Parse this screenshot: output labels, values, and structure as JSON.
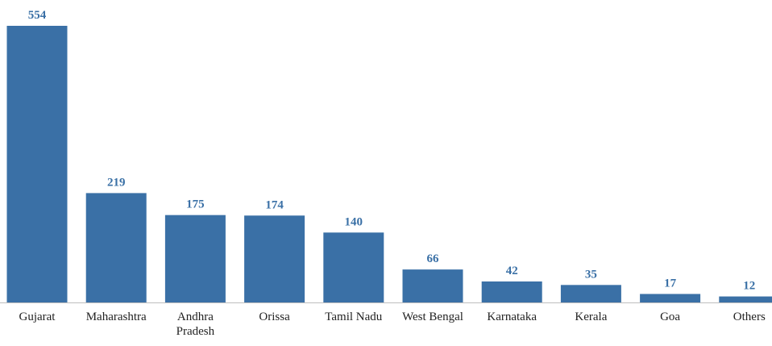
{
  "chart_data": {
    "type": "bar",
    "categories": [
      "Gujarat",
      "Maharashtra",
      "Andhra Pradesh",
      "Orissa",
      "Tamil Nadu",
      "West Bengal",
      "Karnataka",
      "Kerala",
      "Goa",
      "Others"
    ],
    "values": [
      554,
      219,
      175,
      174,
      140,
      66,
      42,
      35,
      17,
      12
    ],
    "color": "#3a70a6"
  }
}
